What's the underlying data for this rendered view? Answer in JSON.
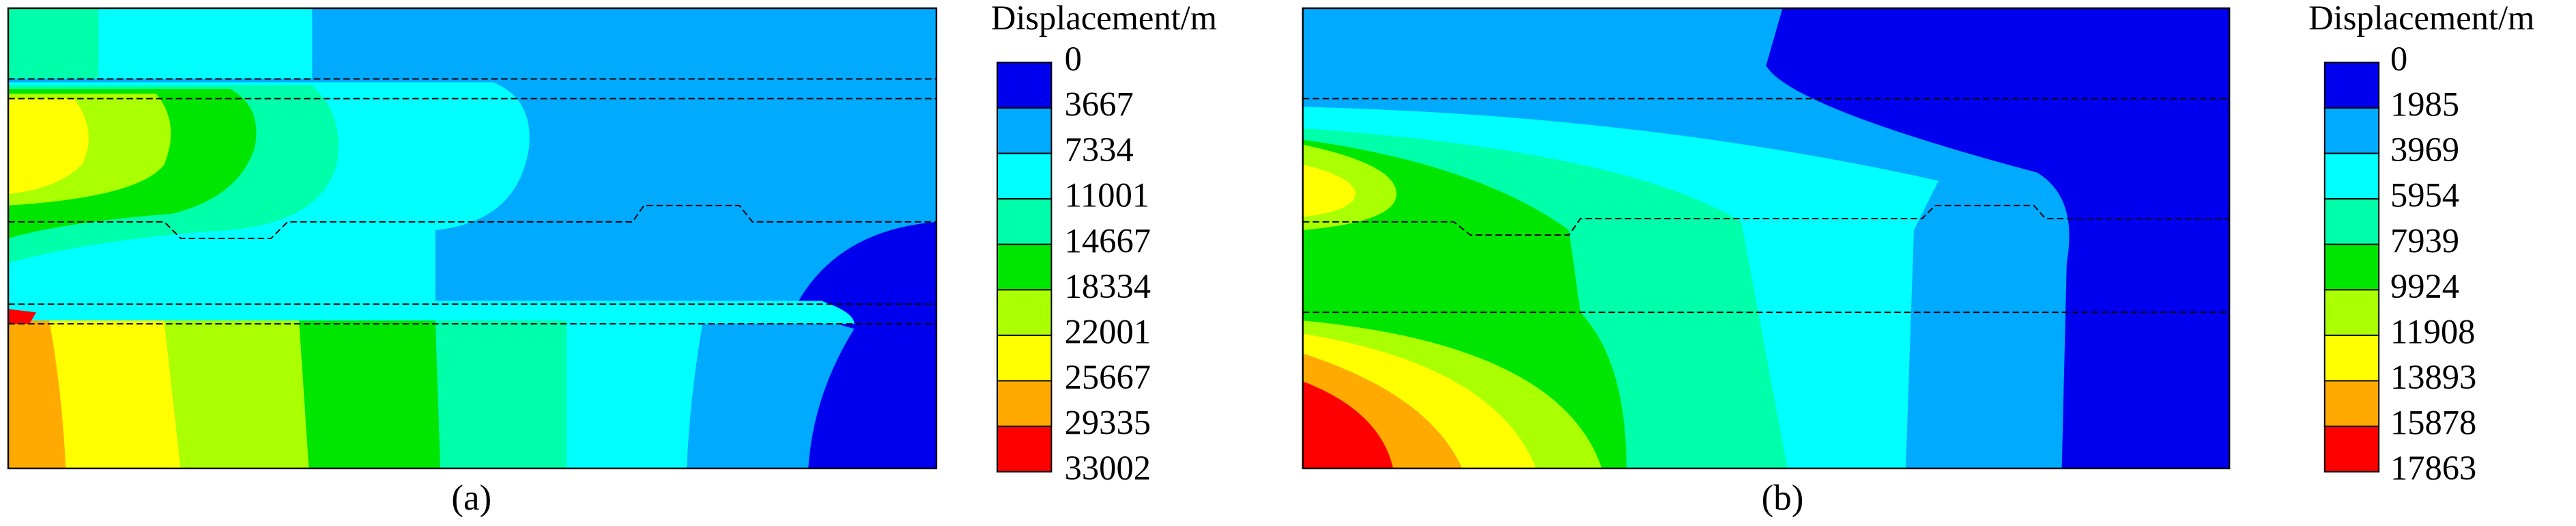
{
  "panels": [
    {
      "caption": "(a)",
      "legend": {
        "title": "Displacement/m",
        "labels": [
          0,
          3667,
          7334,
          11001,
          14667,
          18334,
          22001,
          25667,
          29335,
          33002
        ],
        "colors": [
          "#0000ee",
          "#00aaff",
          "#00ffff",
          "#00ffaa",
          "#00e600",
          "#aaff00",
          "#ffff00",
          "#ffaa00",
          "#ff0000"
        ]
      }
    },
    {
      "caption": "(b)",
      "legend": {
        "title": "Displacement/m",
        "labels": [
          0,
          1985,
          3969,
          5954,
          7939,
          9924,
          11908,
          13893,
          15878,
          17863
        ],
        "colors": [
          "#0000ee",
          "#00aaff",
          "#00ffff",
          "#00ffaa",
          "#00e600",
          "#aaff00",
          "#ffff00",
          "#ffaa00",
          "#ff0000"
        ]
      }
    }
  ]
}
